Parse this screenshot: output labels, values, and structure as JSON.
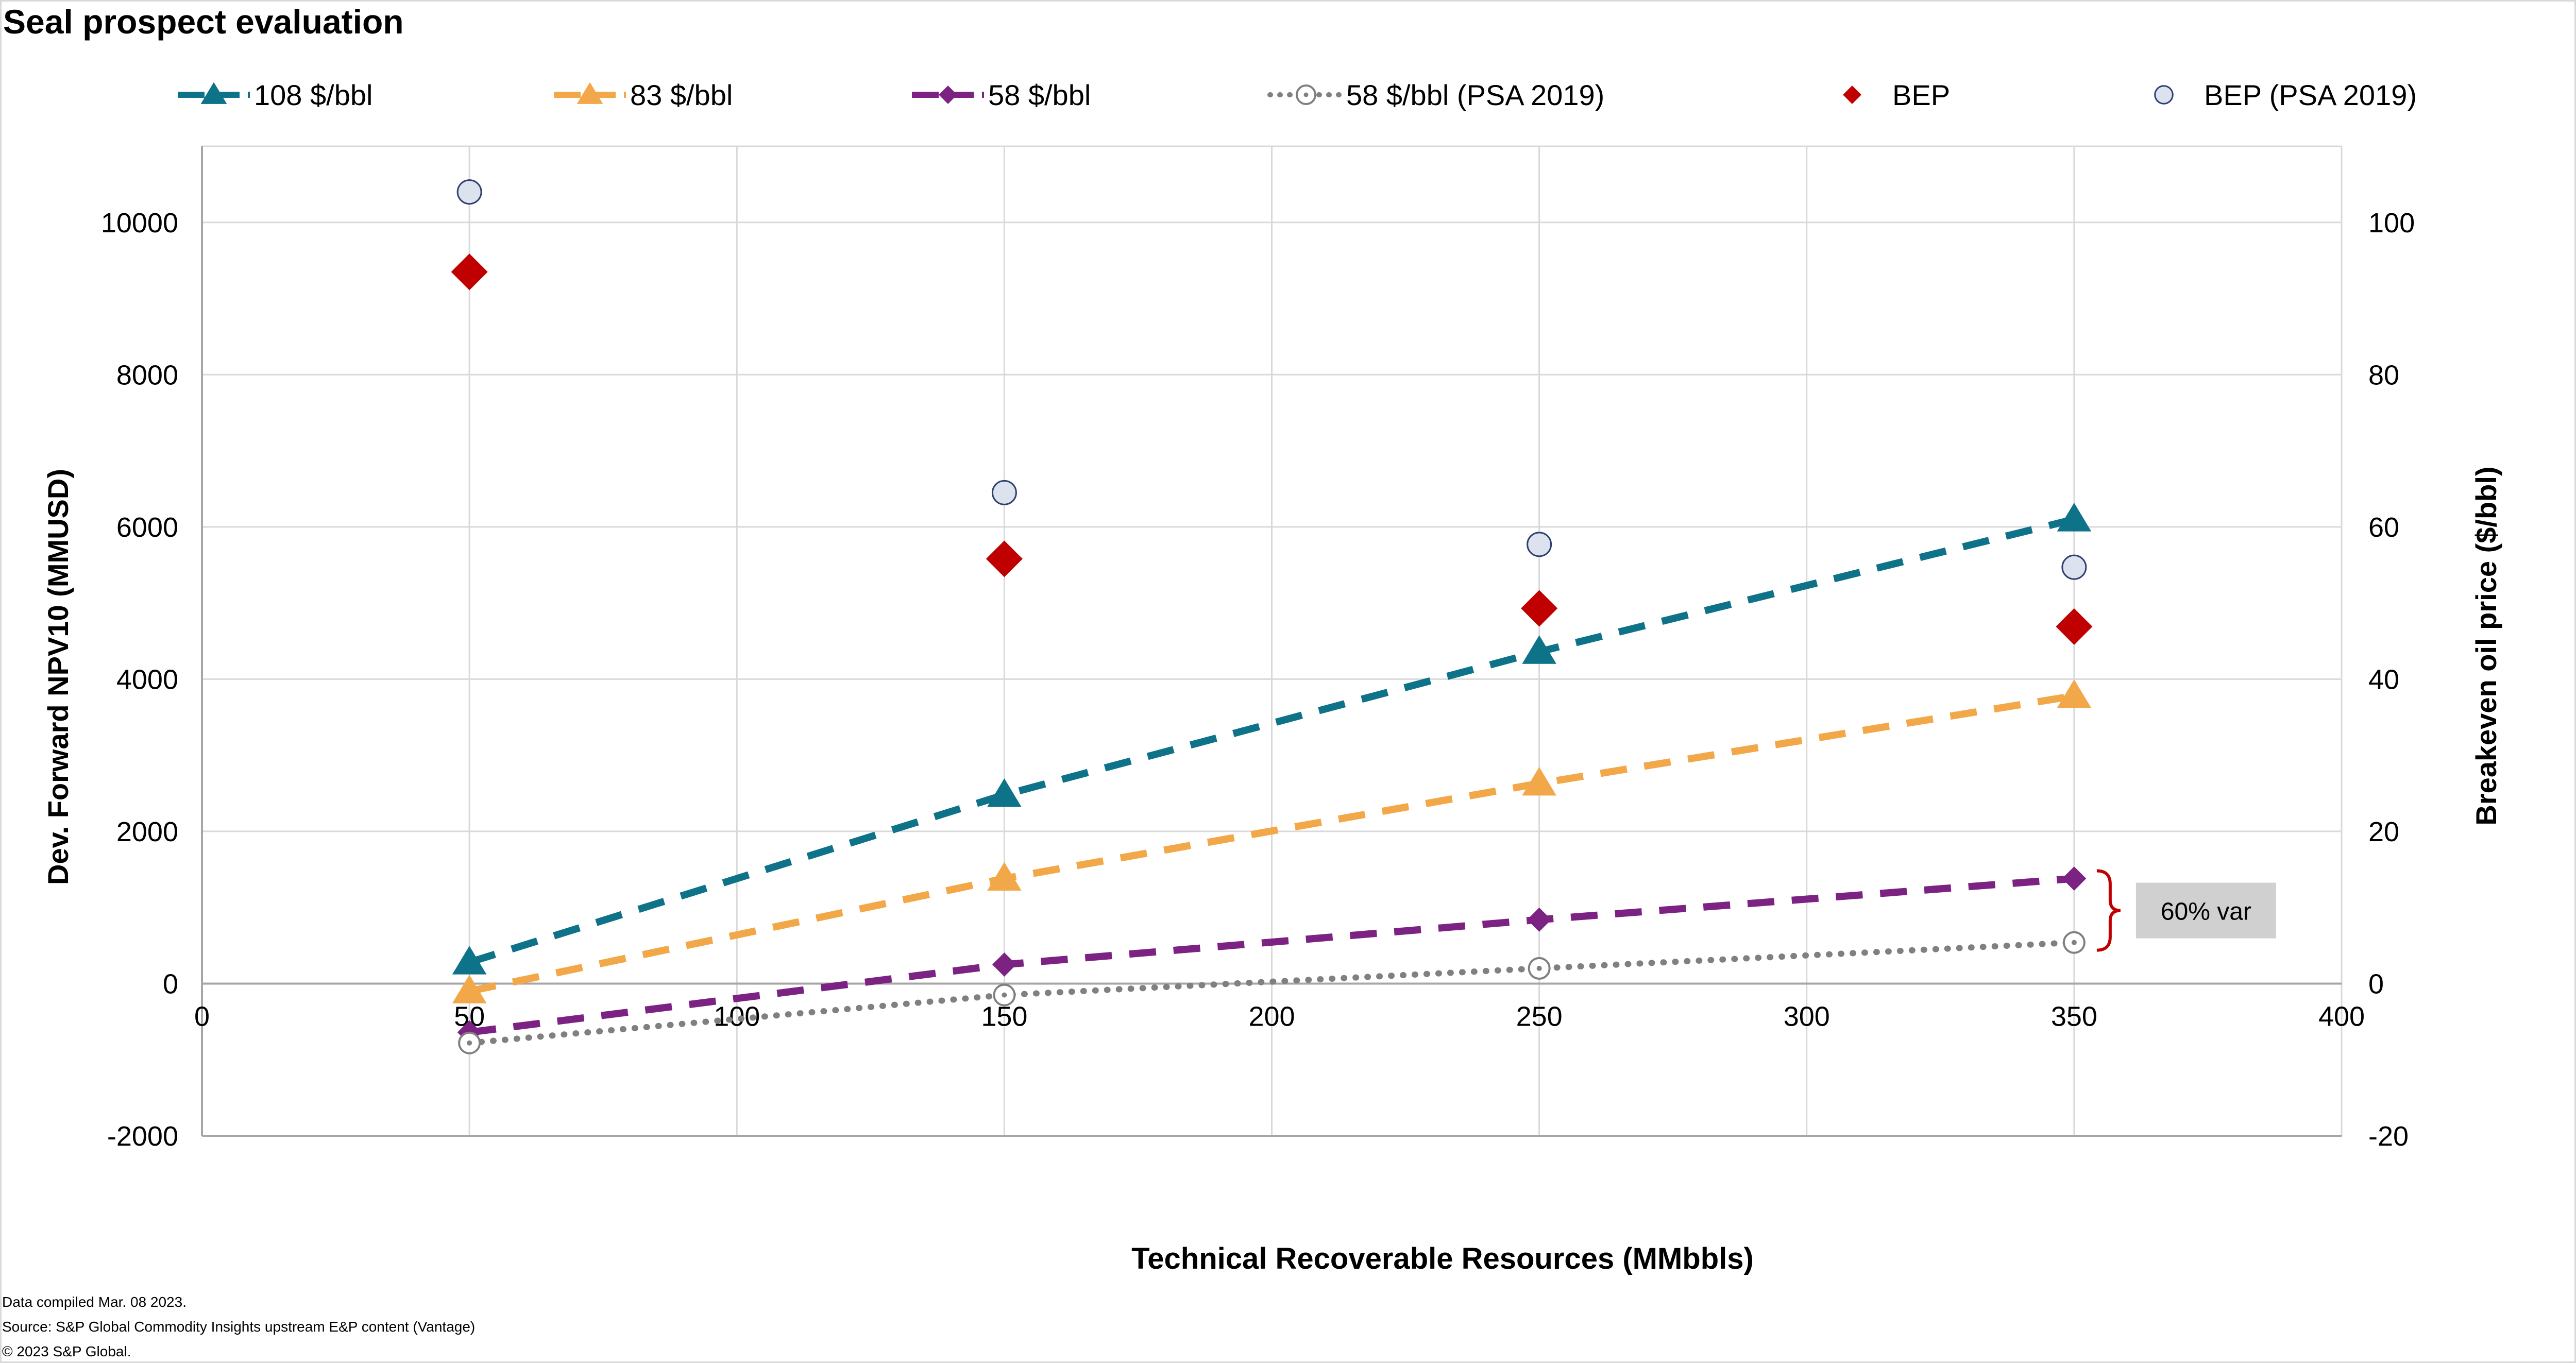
{
  "title": "Seal prospect evaluation",
  "footer": {
    "line1": "Data compiled Mar. 08 2023.",
    "line2": "Source: S&P Global Commodity Insights upstream E&P content (Vantage)",
    "line3": "© 2023 S&P Global."
  },
  "chart_data": {
    "type": "line",
    "title": "Seal prospect evaluation",
    "xlabel": "Technical Recoverable Resources (MMbbls)",
    "ylabel": "Dev. Forward NPV10 (MMUSD)",
    "y2label": "Breakeven oil price ($/bbl)",
    "xlim": [
      0,
      400
    ],
    "ylim": [
      -2000,
      11000
    ],
    "y2lim": [
      -20,
      110
    ],
    "x_ticks": [
      0,
      50,
      100,
      150,
      200,
      250,
      300,
      350,
      400
    ],
    "x_tick_labels": [
      "0",
      "50",
      "100",
      "150",
      "200",
      "250",
      "300",
      "350",
      "400"
    ],
    "y_ticks": [
      -2000,
      0,
      2000,
      4000,
      6000,
      8000,
      10000
    ],
    "y_tick_labels": [
      "-2000",
      "0",
      "2000",
      "4000",
      "6000",
      "8000",
      "10000"
    ],
    "y2_ticks": [
      -20,
      0,
      20,
      40,
      60,
      80,
      100
    ],
    "y2_tick_labels": [
      "-20",
      "0",
      "20",
      "40",
      "60",
      "80",
      "100"
    ],
    "grid": true,
    "legend_position": "top",
    "x": [
      50,
      150,
      250,
      350
    ],
    "series": [
      {
        "name": "108 $/bbl",
        "axis": "left",
        "style": "dashed",
        "marker": "triangle",
        "color": "#0e7289",
        "values": [
          280,
          2480,
          4360,
          6100
        ]
      },
      {
        "name": "83 $/bbl",
        "axis": "left",
        "style": "dashed",
        "marker": "triangle",
        "color": "#f2a848",
        "values": [
          -100,
          1380,
          2630,
          3780
        ]
      },
      {
        "name": "58 $/bbl",
        "axis": "left",
        "style": "dashed",
        "marker": "diamond",
        "color": "#7b2283",
        "values": [
          -640,
          250,
          840,
          1380
        ]
      },
      {
        "name": "58 $/bbl (PSA 2019)",
        "axis": "left",
        "style": "dotted",
        "marker": "open-circle-dot",
        "color": "#808080",
        "values": [
          -780,
          -150,
          200,
          540
        ]
      },
      {
        "name": "BEP",
        "axis": "right",
        "style": "markers",
        "marker": "diamond",
        "color": "#c00000",
        "values": [
          93.5,
          55.8,
          49.3,
          46.9
        ]
      },
      {
        "name": "BEP (PSA 2019)",
        "axis": "right",
        "style": "markers",
        "marker": "circle",
        "color": "#dce3ee",
        "values": [
          104,
          64.5,
          57.7,
          54.7
        ]
      }
    ],
    "annotations": [
      {
        "text": "60% var",
        "x": 350,
        "y_from": 540,
        "y_to": 1380,
        "bracket_color": "#c00000",
        "box_color": "#d0d0d0"
      }
    ]
  }
}
